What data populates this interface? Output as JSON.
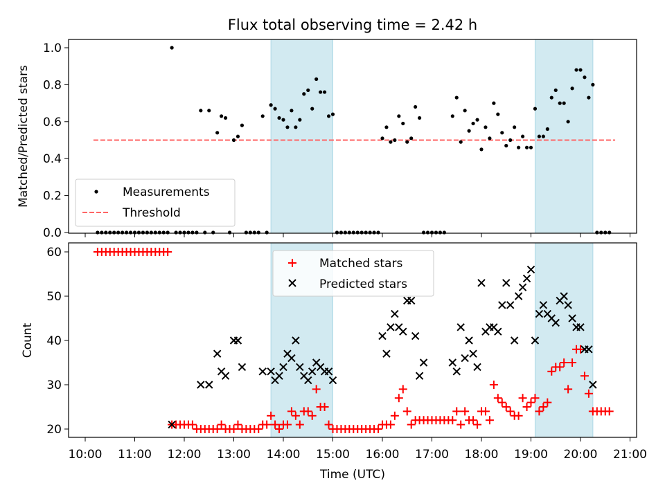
{
  "title": "Flux total observing time = 2.42 h",
  "colors": {
    "shade": "#add8e6",
    "threshold": "#ff6666",
    "matched": "#ff0000",
    "predicted": "#000000",
    "measure": "#000000"
  },
  "chart_data": [
    {
      "type": "scatter",
      "ylabel": "Matched/Predicted stars",
      "ylim": [
        0,
        1.05
      ],
      "yticks": [
        "0.0",
        "0.2",
        "0.4",
        "0.6",
        "0.8",
        "1.0"
      ],
      "legend": {
        "position": "lower-left",
        "measurements": "Measurements",
        "threshold": "Threshold"
      },
      "threshold": {
        "value": 0.5,
        "x_start": "10:10",
        "x_end": "20:42"
      },
      "shaded_ranges": [
        [
          "13:45",
          "15:00"
        ],
        [
          "19:05",
          "20:15"
        ]
      ],
      "measurements": [
        [
          "10:15",
          0
        ],
        [
          "10:20",
          0
        ],
        [
          "10:25",
          0
        ],
        [
          "10:30",
          0
        ],
        [
          "10:35",
          0
        ],
        [
          "10:40",
          0
        ],
        [
          "10:45",
          0
        ],
        [
          "10:50",
          0
        ],
        [
          "10:55",
          0
        ],
        [
          "11:00",
          0
        ],
        [
          "11:05",
          0
        ],
        [
          "11:10",
          0
        ],
        [
          "11:15",
          0
        ],
        [
          "11:20",
          0
        ],
        [
          "11:25",
          0
        ],
        [
          "11:30",
          0
        ],
        [
          "11:35",
          0
        ],
        [
          "11:40",
          0
        ],
        [
          "11:45",
          1.0
        ],
        [
          "11:50",
          0
        ],
        [
          "11:55",
          0
        ],
        [
          "12:00",
          0
        ],
        [
          "12:05",
          0
        ],
        [
          "12:10",
          0
        ],
        [
          "12:15",
          0
        ],
        [
          "12:20",
          0.66
        ],
        [
          "12:25",
          0
        ],
        [
          "12:30",
          0.66
        ],
        [
          "12:35",
          0
        ],
        [
          "12:40",
          0.54
        ],
        [
          "12:45",
          0.63
        ],
        [
          "12:50",
          0.62
        ],
        [
          "12:55",
          0
        ],
        [
          "13:00",
          0.5
        ],
        [
          "13:05",
          0.52
        ],
        [
          "13:10",
          0.58
        ],
        [
          "13:15",
          0
        ],
        [
          "13:20",
          0
        ],
        [
          "13:25",
          0
        ],
        [
          "13:30",
          0
        ],
        [
          "13:35",
          0.63
        ],
        [
          "13:40",
          0
        ],
        [
          "13:45",
          0.69
        ],
        [
          "13:50",
          0.67
        ],
        [
          "13:55",
          0.62
        ],
        [
          "14:00",
          0.61
        ],
        [
          "14:05",
          0.57
        ],
        [
          "14:10",
          0.66
        ],
        [
          "14:15",
          0.57
        ],
        [
          "14:20",
          0.61
        ],
        [
          "14:25",
          0.75
        ],
        [
          "14:30",
          0.77
        ],
        [
          "14:35",
          0.67
        ],
        [
          "14:40",
          0.83
        ],
        [
          "14:45",
          0.76
        ],
        [
          "14:50",
          0.76
        ],
        [
          "14:55",
          0.63
        ],
        [
          "15:00",
          0.64
        ],
        [
          "15:05",
          0
        ],
        [
          "15:10",
          0
        ],
        [
          "15:15",
          0
        ],
        [
          "15:20",
          0
        ],
        [
          "15:25",
          0
        ],
        [
          "15:30",
          0
        ],
        [
          "15:35",
          0
        ],
        [
          "15:40",
          0
        ],
        [
          "15:45",
          0
        ],
        [
          "15:50",
          0
        ],
        [
          "15:55",
          0
        ],
        [
          "16:00",
          0.51
        ],
        [
          "16:05",
          0.57
        ],
        [
          "16:10",
          0.49
        ],
        [
          "16:15",
          0.5
        ],
        [
          "16:20",
          0.63
        ],
        [
          "16:25",
          0.59
        ],
        [
          "16:30",
          0.49
        ],
        [
          "16:35",
          0.51
        ],
        [
          "16:40",
          0.68
        ],
        [
          "16:45",
          0.62
        ],
        [
          "16:50",
          0
        ],
        [
          "16:55",
          0
        ],
        [
          "17:00",
          0
        ],
        [
          "17:05",
          0
        ],
        [
          "17:10",
          0
        ],
        [
          "17:15",
          0
        ],
        [
          "17:25",
          0.63
        ],
        [
          "17:30",
          0.73
        ],
        [
          "17:35",
          0.49
        ],
        [
          "17:40",
          0.66
        ],
        [
          "17:45",
          0.55
        ],
        [
          "17:50",
          0.59
        ],
        [
          "17:55",
          0.61
        ],
        [
          "18:00",
          0.45
        ],
        [
          "18:05",
          0.57
        ],
        [
          "18:10",
          0.51
        ],
        [
          "18:15",
          0.7
        ],
        [
          "18:20",
          0.64
        ],
        [
          "18:25",
          0.54
        ],
        [
          "18:30",
          0.47
        ],
        [
          "18:35",
          0.5
        ],
        [
          "18:40",
          0.57
        ],
        [
          "18:45",
          0.46
        ],
        [
          "18:50",
          0.52
        ],
        [
          "18:55",
          0.46
        ],
        [
          "19:00",
          0.46
        ],
        [
          "19:05",
          0.67
        ],
        [
          "19:10",
          0.52
        ],
        [
          "19:15",
          0.52
        ],
        [
          "19:20",
          0.56
        ],
        [
          "19:25",
          0.73
        ],
        [
          "19:30",
          0.77
        ],
        [
          "19:35",
          0.7
        ],
        [
          "19:40",
          0.7
        ],
        [
          "19:45",
          0.6
        ],
        [
          "19:50",
          0.78
        ],
        [
          "19:55",
          0.88
        ],
        [
          "20:00",
          0.88
        ],
        [
          "20:05",
          0.84
        ],
        [
          "20:10",
          0.73
        ],
        [
          "20:15",
          0.8
        ],
        [
          "20:20",
          0
        ],
        [
          "20:25",
          0
        ],
        [
          "20:30",
          0
        ],
        [
          "20:35",
          0
        ]
      ]
    },
    {
      "type": "scatter",
      "xlabel": "Time (UTC)",
      "ylabel": "Count",
      "ylim": [
        18,
        62
      ],
      "yticks": [
        "20",
        "30",
        "40",
        "50",
        "60"
      ],
      "xticks": [
        "10:00",
        "11:00",
        "12:00",
        "13:00",
        "14:00",
        "15:00",
        "16:00",
        "17:00",
        "18:00",
        "19:00",
        "20:00",
        "21:00"
      ],
      "legend": {
        "position": "upper-center",
        "matched": "Matched stars",
        "predicted": "Predicted stars"
      },
      "shaded_ranges": [
        [
          "13:45",
          "15:00"
        ],
        [
          "19:05",
          "20:15"
        ]
      ],
      "matched": [
        [
          "10:15",
          60
        ],
        [
          "10:20",
          60
        ],
        [
          "10:25",
          60
        ],
        [
          "10:30",
          60
        ],
        [
          "10:35",
          60
        ],
        [
          "10:40",
          60
        ],
        [
          "10:45",
          60
        ],
        [
          "10:50",
          60
        ],
        [
          "10:55",
          60
        ],
        [
          "11:00",
          60
        ],
        [
          "11:05",
          60
        ],
        [
          "11:10",
          60
        ],
        [
          "11:15",
          60
        ],
        [
          "11:20",
          60
        ],
        [
          "11:25",
          60
        ],
        [
          "11:30",
          60
        ],
        [
          "11:35",
          60
        ],
        [
          "11:40",
          60
        ],
        [
          "11:45",
          21
        ],
        [
          "11:50",
          21
        ],
        [
          "11:55",
          21
        ],
        [
          "12:00",
          21
        ],
        [
          "12:05",
          21
        ],
        [
          "12:10",
          21
        ],
        [
          "12:15",
          20
        ],
        [
          "12:20",
          20
        ],
        [
          "12:25",
          20
        ],
        [
          "12:30",
          20
        ],
        [
          "12:35",
          20
        ],
        [
          "12:40",
          20
        ],
        [
          "12:45",
          21
        ],
        [
          "12:50",
          20
        ],
        [
          "12:55",
          20
        ],
        [
          "13:00",
          20
        ],
        [
          "13:05",
          21
        ],
        [
          "13:10",
          20
        ],
        [
          "13:15",
          20
        ],
        [
          "13:20",
          20
        ],
        [
          "13:25",
          20
        ],
        [
          "13:30",
          20
        ],
        [
          "13:35",
          21
        ],
        [
          "13:40",
          21
        ],
        [
          "13:45",
          23
        ],
        [
          "13:50",
          21
        ],
        [
          "13:55",
          20
        ],
        [
          "14:00",
          21
        ],
        [
          "14:05",
          21
        ],
        [
          "14:10",
          24
        ],
        [
          "14:15",
          23
        ],
        [
          "14:20",
          21
        ],
        [
          "14:25",
          24
        ],
        [
          "14:30",
          24
        ],
        [
          "14:35",
          23
        ],
        [
          "14:40",
          29
        ],
        [
          "14:45",
          25
        ],
        [
          "14:50",
          25
        ],
        [
          "14:55",
          21
        ],
        [
          "15:00",
          20
        ],
        [
          "15:05",
          20
        ],
        [
          "15:10",
          20
        ],
        [
          "15:15",
          20
        ],
        [
          "15:20",
          20
        ],
        [
          "15:25",
          20
        ],
        [
          "15:30",
          20
        ],
        [
          "15:35",
          20
        ],
        [
          "15:40",
          20
        ],
        [
          "15:45",
          20
        ],
        [
          "15:50",
          20
        ],
        [
          "15:55",
          20
        ],
        [
          "16:00",
          21
        ],
        [
          "16:05",
          21
        ],
        [
          "16:10",
          21
        ],
        [
          "16:15",
          23
        ],
        [
          "16:20",
          27
        ],
        [
          "16:25",
          29
        ],
        [
          "16:30",
          24
        ],
        [
          "16:35",
          21
        ],
        [
          "16:40",
          22
        ],
        [
          "16:45",
          22
        ],
        [
          "16:50",
          22
        ],
        [
          "16:55",
          22
        ],
        [
          "17:00",
          22
        ],
        [
          "17:05",
          22
        ],
        [
          "17:10",
          22
        ],
        [
          "17:15",
          22
        ],
        [
          "17:20",
          22
        ],
        [
          "17:25",
          22
        ],
        [
          "17:30",
          24
        ],
        [
          "17:35",
          21
        ],
        [
          "17:40",
          24
        ],
        [
          "17:45",
          22
        ],
        [
          "17:50",
          22
        ],
        [
          "17:55",
          21
        ],
        [
          "18:00",
          24
        ],
        [
          "18:05",
          24
        ],
        [
          "18:10",
          22
        ],
        [
          "18:15",
          30
        ],
        [
          "18:20",
          27
        ],
        [
          "18:25",
          26
        ],
        [
          "18:30",
          25
        ],
        [
          "18:35",
          24
        ],
        [
          "18:40",
          23
        ],
        [
          "18:45",
          23
        ],
        [
          "18:50",
          27
        ],
        [
          "18:55",
          25
        ],
        [
          "19:00",
          26
        ],
        [
          "19:05",
          27
        ],
        [
          "19:10",
          24
        ],
        [
          "19:15",
          25
        ],
        [
          "19:20",
          26
        ],
        [
          "19:25",
          33
        ],
        [
          "19:30",
          34
        ],
        [
          "19:35",
          34
        ],
        [
          "19:40",
          35
        ],
        [
          "19:45",
          29
        ],
        [
          "19:50",
          35
        ],
        [
          "19:55",
          38
        ],
        [
          "20:00",
          38
        ],
        [
          "20:05",
          32
        ],
        [
          "20:10",
          28
        ],
        [
          "20:15",
          24
        ],
        [
          "20:20",
          24
        ],
        [
          "20:25",
          24
        ],
        [
          "20:30",
          24
        ],
        [
          "20:35",
          24
        ]
      ],
      "predicted": [
        [
          "11:45",
          21
        ],
        [
          "12:20",
          30
        ],
        [
          "12:30",
          30
        ],
        [
          "12:40",
          37
        ],
        [
          "12:45",
          33
        ],
        [
          "12:50",
          32
        ],
        [
          "13:00",
          40
        ],
        [
          "13:05",
          40
        ],
        [
          "13:10",
          34
        ],
        [
          "13:35",
          33
        ],
        [
          "13:45",
          33
        ],
        [
          "13:50",
          31
        ],
        [
          "13:55",
          32
        ],
        [
          "14:00",
          34
        ],
        [
          "14:05",
          37
        ],
        [
          "14:10",
          36
        ],
        [
          "14:15",
          40
        ],
        [
          "14:20",
          34
        ],
        [
          "14:25",
          32
        ],
        [
          "14:30",
          31
        ],
        [
          "14:35",
          33
        ],
        [
          "14:40",
          35
        ],
        [
          "14:45",
          34
        ],
        [
          "14:50",
          33
        ],
        [
          "14:55",
          33
        ],
        [
          "15:00",
          31
        ],
        [
          "16:00",
          41
        ],
        [
          "16:05",
          37
        ],
        [
          "16:10",
          43
        ],
        [
          "16:15",
          46
        ],
        [
          "16:20",
          43
        ],
        [
          "16:25",
          42
        ],
        [
          "16:30",
          49
        ],
        [
          "16:35",
          49
        ],
        [
          "16:40",
          41
        ],
        [
          "16:45",
          32
        ],
        [
          "16:50",
          35
        ],
        [
          "17:25",
          35
        ],
        [
          "17:30",
          33
        ],
        [
          "17:35",
          43
        ],
        [
          "17:40",
          36
        ],
        [
          "17:45",
          40
        ],
        [
          "17:50",
          37
        ],
        [
          "17:55",
          34
        ],
        [
          "18:00",
          53
        ],
        [
          "18:05",
          42
        ],
        [
          "18:10",
          43
        ],
        [
          "18:15",
          43
        ],
        [
          "18:20",
          42
        ],
        [
          "18:25",
          48
        ],
        [
          "18:30",
          53
        ],
        [
          "18:35",
          48
        ],
        [
          "18:40",
          40
        ],
        [
          "18:45",
          50
        ],
        [
          "18:50",
          52
        ],
        [
          "18:55",
          54
        ],
        [
          "19:00",
          56
        ],
        [
          "19:05",
          40
        ],
        [
          "19:10",
          46
        ],
        [
          "19:15",
          48
        ],
        [
          "19:20",
          46
        ],
        [
          "19:25",
          45
        ],
        [
          "19:30",
          44
        ],
        [
          "19:35",
          49
        ],
        [
          "19:40",
          50
        ],
        [
          "19:45",
          48
        ],
        [
          "19:50",
          45
        ],
        [
          "19:55",
          43
        ],
        [
          "20:00",
          43
        ],
        [
          "20:05",
          38
        ],
        [
          "20:10",
          38
        ],
        [
          "20:15",
          30
        ]
      ]
    }
  ]
}
